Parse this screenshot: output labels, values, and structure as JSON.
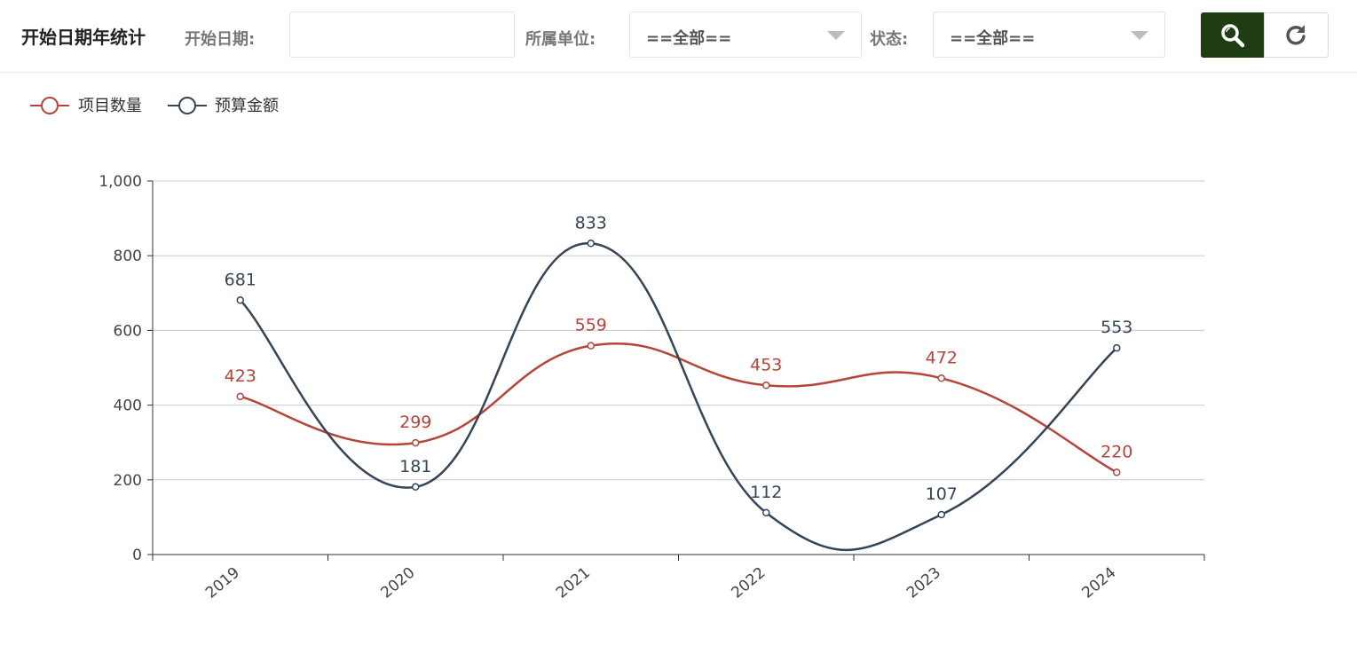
{
  "header": {
    "title": "开始日期年统计",
    "start_date_label": "开始日期:",
    "start_date_value": "",
    "unit_label": "所属单位:",
    "unit_value": "==全部==",
    "status_label": "状态:",
    "status_value": "==全部=="
  },
  "buttons": {
    "search_icon": "search-icon",
    "reset_icon": "refresh-icon"
  },
  "colors": {
    "series1": "#b5443a",
    "series2": "#334558",
    "search_button": "#1e3d12",
    "axis": "#333333",
    "grid": "#cccccc"
  },
  "chart_data": {
    "type": "line",
    "smooth": true,
    "title": "",
    "xlabel": "",
    "ylabel": "",
    "categories": [
      "2019",
      "2020",
      "2021",
      "2022",
      "2023",
      "2024"
    ],
    "series": [
      {
        "name": "项目数量",
        "values": [
          423,
          299,
          559,
          453,
          472,
          220
        ]
      },
      {
        "name": "预算金额",
        "values": [
          681,
          181,
          833,
          112,
          107,
          553
        ]
      }
    ],
    "ylim": [
      0,
      1000
    ],
    "yticks": [
      "0",
      "200",
      "400",
      "600",
      "800",
      "1,000"
    ],
    "grid": true,
    "legend_position": "top-left",
    "data_labels": true
  }
}
